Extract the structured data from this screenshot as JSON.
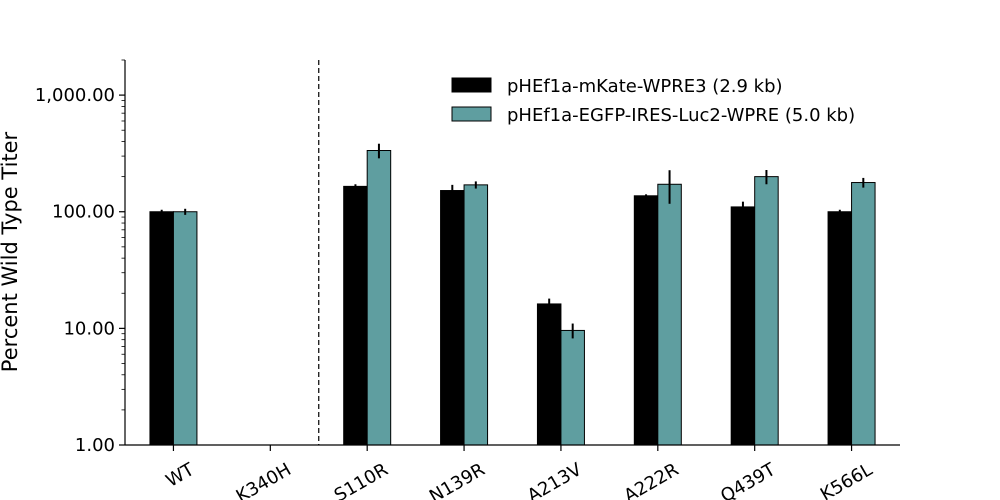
{
  "chart_data": {
    "type": "bar",
    "ylabel": "Percent Wild Type Titer",
    "xlabel": "",
    "yscale": "log",
    "ylim": [
      1,
      2000
    ],
    "yticks": [
      {
        "value": 1,
        "label": "1.00"
      },
      {
        "value": 10,
        "label": "10.00"
      },
      {
        "value": 100,
        "label": "100.00"
      },
      {
        "value": 1000,
        "label": "1,000.00"
      }
    ],
    "categories": [
      "WT",
      "K340H",
      "S110R",
      "N139R",
      "A213V",
      "A222R",
      "Q439T",
      "K566L"
    ],
    "series": [
      {
        "name": "pHEf1a-mKate-WPRE3 (2.9 kb)",
        "color": "#000000",
        "values": [
          100,
          null,
          165,
          152,
          16.2,
          137,
          110,
          100
        ],
        "errors": [
          4,
          null,
          7,
          18,
          1.8,
          4,
          12,
          4
        ]
      },
      {
        "name": "pHEf1a-EGFP-IRES-Luc2-WPRE (5.0 kb)",
        "color": "#5f9ea0",
        "values": [
          100,
          null,
          335,
          170,
          9.6,
          172,
          200,
          178
        ],
        "errors": [
          6,
          null,
          48,
          12,
          1.4,
          55,
          28,
          17
        ]
      }
    ],
    "reference_line": {
      "between": [
        "K340H",
        "S110R"
      ],
      "style": "dashed"
    },
    "legend_position": "upper-right",
    "grid": false
  }
}
